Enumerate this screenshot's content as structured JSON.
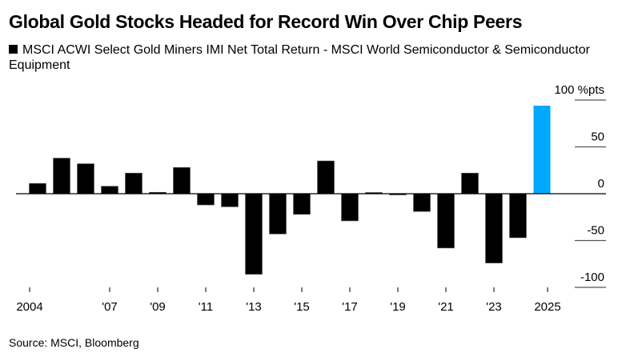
{
  "chart_data": {
    "type": "bar",
    "title": "Global Gold Stocks Headed for Record Win Over Chip Peers",
    "legend": [
      {
        "label": "MSCI ACWI Select Gold Miners IMI Net Total Return - MSCI World Semiconductor & Semiconductor Equipment",
        "color": "#000000"
      }
    ],
    "categories": [
      "2004",
      "2005",
      "2006",
      "2007",
      "2008",
      "2009",
      "2010",
      "2011",
      "2012",
      "2013",
      "2014",
      "2015",
      "2016",
      "2017",
      "2018",
      "2019",
      "2020",
      "2021",
      "2022",
      "2023",
      "2024",
      "2025"
    ],
    "values": [
      11,
      38,
      32,
      8,
      22,
      1.5,
      28,
      -12,
      -14,
      -86,
      -43,
      -22,
      35,
      -29,
      1,
      -1,
      -19,
      -58,
      22,
      -74,
      -47,
      94
    ],
    "highlight": {
      "category": "2025",
      "color": "#00a8ff"
    },
    "bar_color": "#000000",
    "xlabel": "",
    "ylabel": "%pts",
    "ylim": [
      -100,
      100
    ],
    "y_ticks": [
      {
        "value": 100,
        "label": "100 %pts"
      },
      {
        "value": 50,
        "label": "50"
      },
      {
        "value": 0,
        "label": "0"
      },
      {
        "value": -50,
        "label": "-50"
      },
      {
        "value": -100,
        "label": "-100"
      }
    ],
    "x_ticks": [
      {
        "year": 2004,
        "label": "2004"
      },
      {
        "year": 2007,
        "label": "'07"
      },
      {
        "year": 2009,
        "label": "'09"
      },
      {
        "year": 2011,
        "label": "'11"
      },
      {
        "year": 2013,
        "label": "'13"
      },
      {
        "year": 2015,
        "label": "'15"
      },
      {
        "year": 2017,
        "label": "'17"
      },
      {
        "year": 2019,
        "label": "'19"
      },
      {
        "year": 2021,
        "label": "'21"
      },
      {
        "year": 2023,
        "label": "'23"
      },
      {
        "year": 2025,
        "label": "2025"
      }
    ],
    "y_axis_side": "right",
    "grid": false,
    "legend_position": "top-left"
  },
  "source": "Source: MSCI, Bloomberg"
}
